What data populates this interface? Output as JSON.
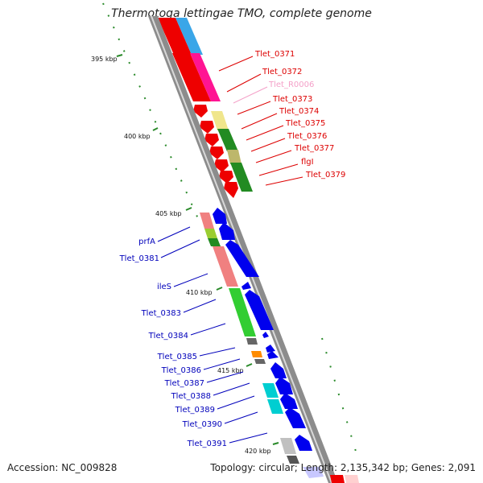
{
  "title": "Thermotoga lettingae TMO, complete genome",
  "accession": "Accession: NC_009828",
  "summary": "Topology: circular; Length: 2,135,342 bp; Genes: 2,091",
  "colors": {
    "forward_label": "#dd0000",
    "reverse_label": "#0000bb",
    "rna_label": "#f4a0c8",
    "backbone": "#888888",
    "tick": "#2a8a2a"
  },
  "ticks": [
    {
      "label": "395 kbp"
    },
    {
      "label": "400 kbp"
    },
    {
      "label": "405 kbp"
    },
    {
      "label": "410 kbp"
    },
    {
      "label": "415 kbp"
    },
    {
      "label": "420 kbp"
    }
  ],
  "forward_genes": [
    {
      "label": "Tlet_0371",
      "type": "forward"
    },
    {
      "label": "Tlet_0372",
      "type": "forward"
    },
    {
      "label": "Tlet_R0006",
      "type": "rna"
    },
    {
      "label": "Tlet_0373",
      "type": "forward"
    },
    {
      "label": "Tlet_0374",
      "type": "forward"
    },
    {
      "label": "Tlet_0375",
      "type": "forward"
    },
    {
      "label": "Tlet_0376",
      "type": "forward"
    },
    {
      "label": "Tlet_0377",
      "type": "forward"
    },
    {
      "label": "flgI",
      "type": "forward"
    },
    {
      "label": "Tlet_0379",
      "type": "forward"
    }
  ],
  "reverse_genes": [
    {
      "label": "prfA"
    },
    {
      "label": "Tlet_0381"
    },
    {
      "label": "ileS"
    },
    {
      "label": "Tlet_0383"
    },
    {
      "label": "Tlet_0384"
    },
    {
      "label": "Tlet_0385"
    },
    {
      "label": "Tlet_0386"
    },
    {
      "label": "Tlet_0387"
    },
    {
      "label": "Tlet_0388"
    },
    {
      "label": "Tlet_0389"
    },
    {
      "label": "Tlet_0390"
    },
    {
      "label": "Tlet_0391"
    }
  ]
}
